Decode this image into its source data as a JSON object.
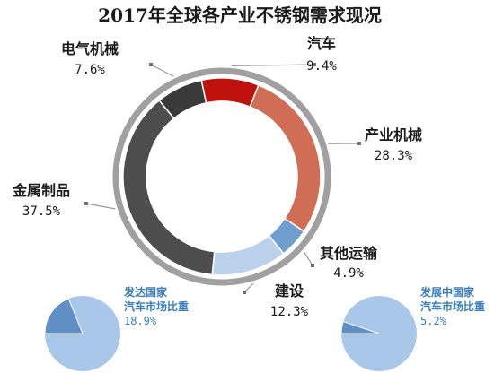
{
  "chart_data": [
    {
      "type": "pie",
      "title": "2017年全球各产业不锈钢需求现况",
      "categories": [
        "汽车",
        "产业机械",
        "其他运输",
        "建设",
        "金属制品",
        "电气机械"
      ],
      "values": [
        9.4,
        28.3,
        4.9,
        12.3,
        37.5,
        7.6
      ],
      "value_labels": [
        "9.4%",
        "28.3%",
        "4.9%",
        "12.3%",
        "37.5%",
        "7.6%"
      ],
      "colors": [
        "#c0120c",
        "#cf6e55",
        "#6f9ecf",
        "#bcd2ec",
        "#4d4d4d",
        "#3a3a3a"
      ],
      "style": "donut"
    },
    {
      "type": "pie",
      "categories": [
        "发达国家汽车市场比重"
      ],
      "values": [
        18.9
      ],
      "value_labels": [
        "18.9%"
      ],
      "label_lines": [
        "发达国家",
        "汽车市场比重"
      ],
      "colors": [
        "#5f8fc4",
        "#a9c7e8"
      ]
    },
    {
      "type": "pie",
      "categories": [
        "发展中国家汽车市场比重"
      ],
      "values": [
        5.2
      ],
      "value_labels": [
        "5.2%"
      ],
      "label_lines": [
        "发展中国家",
        "汽车市场比重"
      ],
      "colors": [
        "#5f8fc4",
        "#a9c7e8"
      ]
    }
  ]
}
